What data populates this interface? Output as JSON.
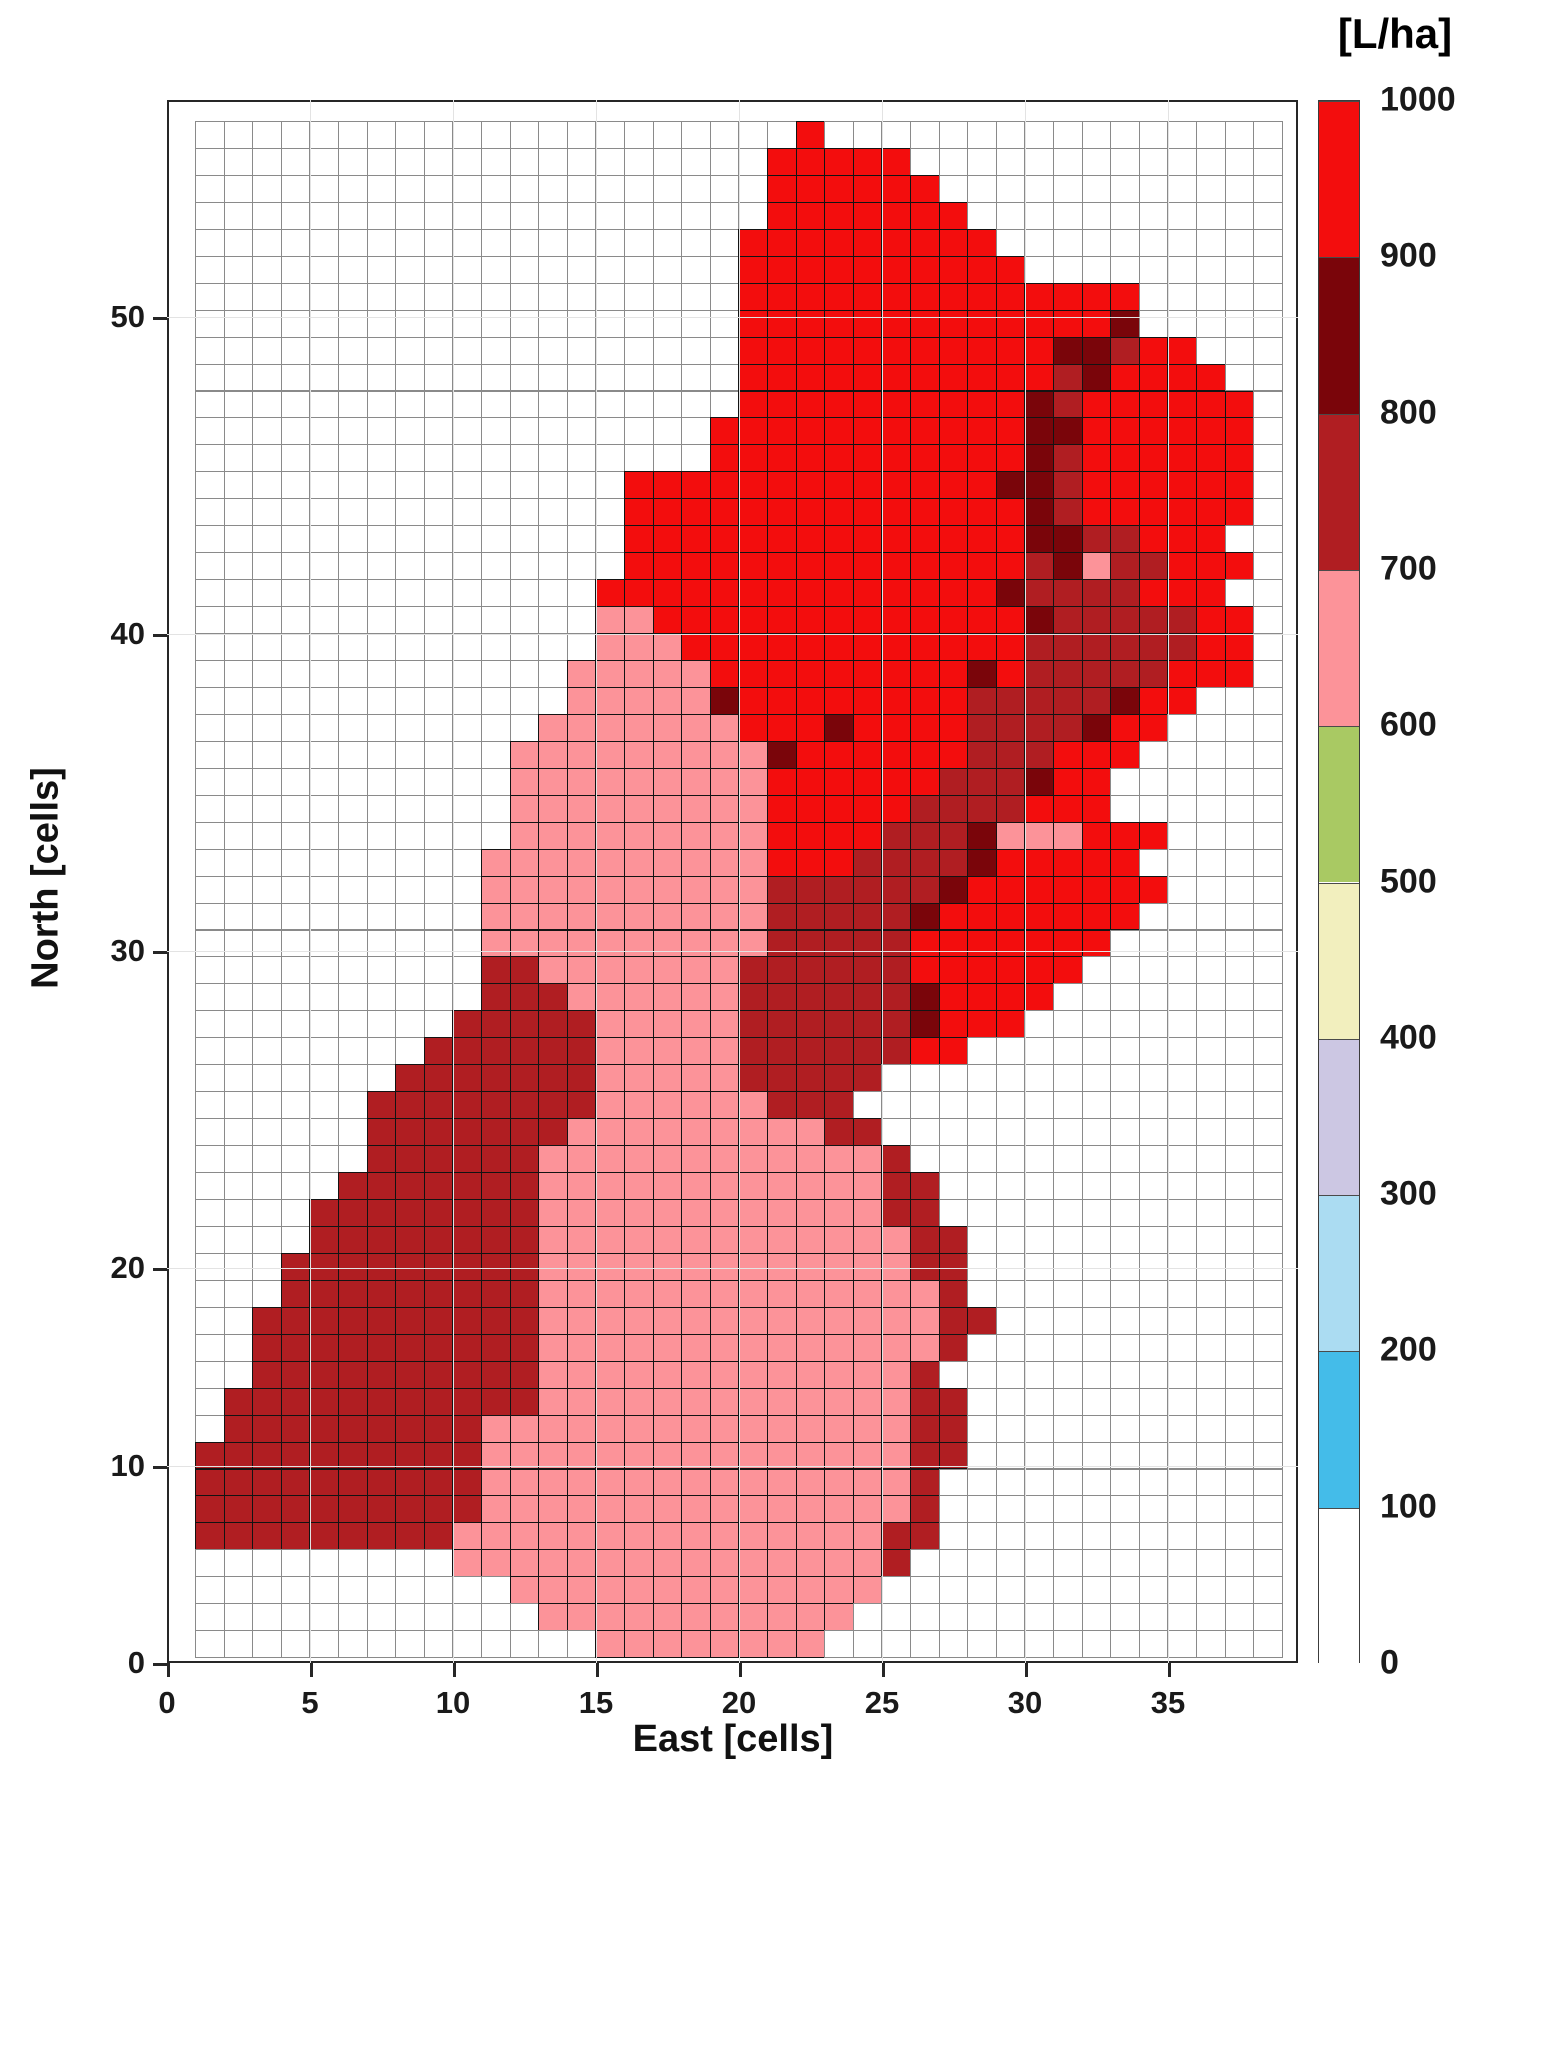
{
  "figure": {
    "kind": "application-rate heatmap",
    "background": "#ffffff"
  },
  "axes": {
    "xlabel": "East [cells]",
    "ylabel": "North [cells]",
    "x_ticks": [
      0,
      5,
      10,
      15,
      20,
      25,
      30,
      35
    ],
    "y_ticks": [
      0,
      10,
      20,
      30,
      40,
      50
    ]
  },
  "colorbar": {
    "title": "[L/ha]",
    "tick_labels": [
      0,
      100,
      200,
      300,
      400,
      500,
      600,
      700,
      800,
      900,
      1000
    ],
    "segment_colors_bottom_to_top": [
      "#ffffff",
      "#44bce9",
      "#abdcf2",
      "#ccc7e3",
      "#f2efbe",
      "#a9c963",
      "#fc9399",
      "#b01e22",
      "#7a050a",
      "#f30d0d"
    ]
  },
  "chart_data": {
    "type": "heatmap",
    "xlabel": "East [cells]",
    "ylabel": "North [cells]",
    "unit": "L/ha",
    "x_range": [
      0,
      38.5
    ],
    "y_range": [
      0,
      58
    ],
    "legend_position": "right colorbar",
    "grid": "38 columns (East 1..38, left to right) x 57 rows (North 57..1, top to bottom)",
    "value_classes": {
      "0": {
        "range_l_per_ha": [
          0,
          100
        ],
        "color": "#ffffff",
        "meaning": "no application / outside field"
      },
      "1": {
        "range_l_per_ha": [
          600,
          700
        ],
        "color": "#fc9399",
        "meaning": "pink cells ~650 L/ha"
      },
      "2": {
        "range_l_per_ha": [
          700,
          800
        ],
        "color": "#b01e22",
        "meaning": "brick red cells ~750 L/ha"
      },
      "3": {
        "range_l_per_ha": [
          800,
          900
        ],
        "color": "#7a050a",
        "meaning": "dark maroon cells ~850 L/ha"
      },
      "4": {
        "range_l_per_ha": [
          900,
          1000
        ],
        "color": "#f30d0d",
        "meaning": "bright red cells ~950 L/ha"
      }
    },
    "rows": [
      "00000000000000000000040000000000000000",
      "00000000000000000000444440000000000000",
      "00000000000000000000444444000000000000",
      "00000000000000000000444444400000000000",
      "00000000000000000004444444440000000000",
      "00000000000000000004444444444000000000",
      "00000000000000000004444444444444400000",
      "00000000000000000004444444444444300000",
      "00000000000000000004444444444433244000",
      "00000000000000000004444444444423444400",
      "00000000000000000004444444444324444440",
      "00000000000000000044444444444334444440",
      "00000000000000000044444444444324444440",
      "00000000000000044444444444443324444440",
      "00000000000000044444444444444324444440",
      "00000000000000044444444444444332244400",
      "00000000000000044444444444444231224440",
      "00000000000000444444444444443222244400",
      "00000000000000114444444444444322222440",
      "00000000000000111444444444444222222440",
      "00000000000001111144444444434222224440",
      "00000000000001111134444444422222344000",
      "00000000000011111114443444422223440000",
      "00000000000111111111344444422244400000",
      "00000000000111111111444444222344000000",
      "00000000000111111111444442222444000000",
      "00000000000111111111444422231114440000",
      "00000000001111111111444222234444400000",
      "00000000001111111111222222344444440000",
      "00000000001111111111222223444444400000",
      "00000000001111111111222224444444000000",
      "00000000002211111112222224444440000000",
      "00000000002221111112222223444400000000",
      "00000000022222111112222223444000000000",
      "00000000222222111112222224400000000000",
      "00000002222222111112222200000000000000",
      "00000022222222111111222000000000000000",
      "00000022222221111111112200000000000000",
      "00000022222211111111111120000000000000",
      "00000222222211111111111122000000000000",
      "00002222222211111111111122000000000000",
      "00002222222211111111111112200000000000",
      "00022222222211111111111112200000000000",
      "00022222222211111111111111200000000000",
      "00222222222211111111111111220000000000",
      "00222222222211111111111111200000000000",
      "00222222222211111111111112000000000000",
      "02222222222211111111111112200000000000",
      "02222222221111111111111112200000000000",
      "22222222221111111111111112200000000000",
      "22222222221111111111111112000000000000",
      "22222222221111111111111112000000000000",
      "22222222211111111111111122000000000000",
      "00000000011111111111111120000000000000",
      "00000000000111111111111100000000000000",
      "00000000000011111111111000000000000000",
      "00000000000000111111110000000000000000"
    ]
  },
  "interaction_note": "static chart image - no interactive controls"
}
